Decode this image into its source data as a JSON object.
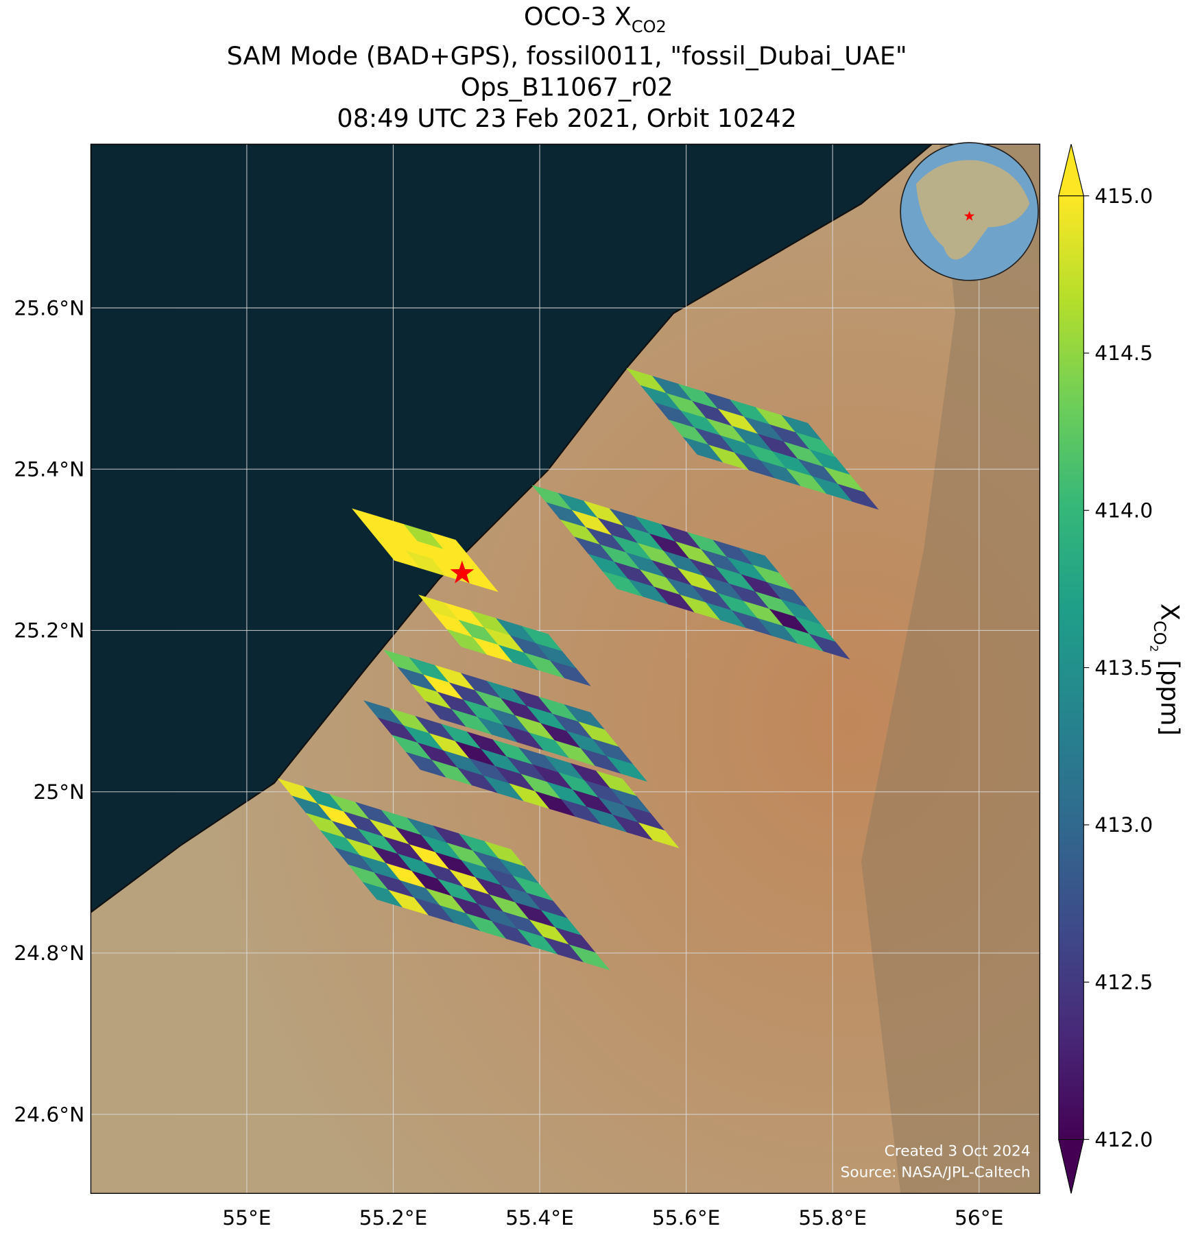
{
  "map": {
    "title": {
      "main": "OCO-3 X",
      "sub": "CO2"
    },
    "subtitles": [
      "SAM Mode (BAD+GPS), fossil0011, \"fossil_Dubai_UAE\"",
      "Ops_B11067_r02",
      "08:49 UTC 23 Feb 2021, Orbit 10242"
    ],
    "xlim": [
      54.787,
      56.083
    ],
    "ylim": [
      24.502,
      25.803
    ],
    "xticks": [
      {
        "value": 55,
        "label": "55°E"
      },
      {
        "value": 55.2,
        "label": "55.2°E"
      },
      {
        "value": 55.4,
        "label": "55.4°E"
      },
      {
        "value": 55.6,
        "label": "55.6°E"
      },
      {
        "value": 55.8,
        "label": "55.8°E"
      },
      {
        "value": 56,
        "label": "56°E"
      }
    ],
    "yticks": [
      {
        "value": 24.6,
        "label": "24.6°N"
      },
      {
        "value": 24.8,
        "label": "24.8°N"
      },
      {
        "value": 25,
        "label": "25°N"
      },
      {
        "value": 25.2,
        "label": "25.2°N"
      },
      {
        "value": 25.4,
        "label": "25.4°N"
      },
      {
        "value": 25.6,
        "label": "25.6°N"
      }
    ],
    "colorbar": {
      "lim": [
        412,
        415
      ],
      "ticks": [
        {
          "value": 412,
          "label": "412.0"
        },
        {
          "value": 412.5,
          "label": "412.5"
        },
        {
          "value": 413,
          "label": "413.0"
        },
        {
          "value": 413.5,
          "label": "413.5"
        },
        {
          "value": 414,
          "label": "414.0"
        },
        {
          "value": 414.5,
          "label": "414.5"
        },
        {
          "value": 415,
          "label": "415.0"
        }
      ],
      "label": {
        "main": "X",
        "sub": "CO",
        "subsub": "2",
        "unit": " [ppm]"
      }
    },
    "target": {
      "lon": 55.294,
      "lat": 25.271
    },
    "swaths": [
      {
        "lon": 55.043,
        "lat": 25.016,
        "values": [
          [
            414.9,
            413.6,
            414.4,
            412.8,
            414.1,
            413.2,
            412.4,
            413.9,
            414.6
          ],
          [
            413.3,
            415.1,
            412.6,
            414.8,
            412.2,
            413.7,
            414.3,
            412.9,
            413.4
          ],
          [
            414.6,
            412.8,
            413.9,
            412.3,
            415.2,
            412.1,
            413.5,
            412.7,
            414.0
          ],
          [
            413.8,
            414.7,
            412.2,
            413.6,
            412.5,
            414.9,
            412.3,
            413.1,
            412.6
          ],
          [
            412.9,
            413.4,
            415.0,
            412.1,
            413.8,
            412.4,
            414.4,
            412.2,
            413.7
          ],
          [
            414.2,
            412.5,
            413.1,
            414.5,
            412.3,
            413.0,
            412.8,
            414.7,
            412.4
          ],
          [
            413.5,
            414.9,
            412.7,
            413.3,
            414.1,
            412.6,
            413.9,
            412.5,
            414.2
          ]
        ]
      },
      {
        "lon": 55.16,
        "lat": 25.113,
        "values": [
          [
            413.1,
            414.5,
            412.6,
            413.8,
            412.2,
            414.0,
            412.9,
            413.4,
            412.3,
            414.6
          ],
          [
            412.4,
            413.7,
            414.8,
            412.1,
            413.5,
            412.6,
            412.3,
            413.9,
            412.7,
            413.0
          ],
          [
            414.1,
            412.3,
            413.2,
            412.8,
            412.4,
            414.3,
            413.6,
            412.2,
            413.1,
            412.5
          ],
          [
            412.8,
            414.2,
            412.5,
            413.4,
            414.7,
            412.1,
            412.6,
            413.3,
            412.4,
            414.8
          ]
        ]
      },
      {
        "lon": 55.187,
        "lat": 25.176,
        "values": [
          [
            414.3,
            413.8,
            414.9,
            412.7,
            413.5,
            412.4,
            414.1,
            413.2
          ],
          [
            413.0,
            415.0,
            412.6,
            414.2,
            412.3,
            413.7,
            412.8,
            414.6
          ],
          [
            414.7,
            412.5,
            413.9,
            413.1,
            414.5,
            412.2,
            413.4,
            412.9
          ],
          [
            412.6,
            414.1,
            413.3,
            412.4,
            413.8,
            414.4,
            412.7,
            413.6
          ]
        ]
      },
      {
        "lon": 55.235,
        "lat": 25.244,
        "values": [
          [
            414.9,
            415.1,
            414.6,
            413.4,
            413.9
          ],
          [
            415.2,
            414.3,
            414.8,
            412.9,
            413.2
          ],
          [
            414.5,
            415.0,
            413.7,
            414.2,
            412.8
          ]
        ]
      },
      {
        "lon": 55.144,
        "lat": 25.351,
        "values": [
          [
            415.2,
            415.3,
            414.6,
            415.1
          ],
          [
            415.0,
            415.4,
            415.2,
            415.0
          ],
          [
            415.3,
            414.9,
            415.1,
            415.2
          ]
        ]
      },
      {
        "lon": 55.39,
        "lat": 25.38,
        "values": [
          [
            414.2,
            413.5,
            414.8,
            412.9,
            413.7,
            412.4,
            414.1,
            412.8,
            413.3
          ],
          [
            413.1,
            414.9,
            412.6,
            413.8,
            412.2,
            414.5,
            412.9,
            413.6,
            414.3
          ],
          [
            414.6,
            412.7,
            413.9,
            414.4,
            413.2,
            412.5,
            413.8,
            412.3,
            412.9
          ],
          [
            412.8,
            414.1,
            413.3,
            412.4,
            414.7,
            413.0,
            412.6,
            414.2,
            413.5
          ],
          [
            413.6,
            412.5,
            414.5,
            413.1,
            412.7,
            413.9,
            414.4,
            412.1,
            413.8
          ],
          [
            414.0,
            413.4,
            412.3,
            414.6,
            413.5,
            412.8,
            413.2,
            414.0,
            412.6
          ]
        ]
      },
      {
        "lon": 55.519,
        "lat": 25.525,
        "values": [
          [
            414.6,
            413.2,
            414.1,
            412.8,
            413.9,
            414.5,
            413.4
          ],
          [
            413.5,
            414.3,
            412.6,
            414.8,
            413.1,
            412.7,
            414.0
          ],
          [
            412.9,
            413.8,
            414.4,
            413.3,
            412.5,
            414.2,
            413.6
          ],
          [
            414.2,
            412.7,
            413.5,
            414.0,
            413.7,
            412.9,
            414.4
          ],
          [
            413.3,
            414.6,
            412.8,
            413.2,
            414.3,
            413.5,
            412.6
          ]
        ]
      }
    ],
    "credits": [
      "Created 3 Oct 2024",
      "Source: NASA/JPL-Caltech"
    ]
  }
}
